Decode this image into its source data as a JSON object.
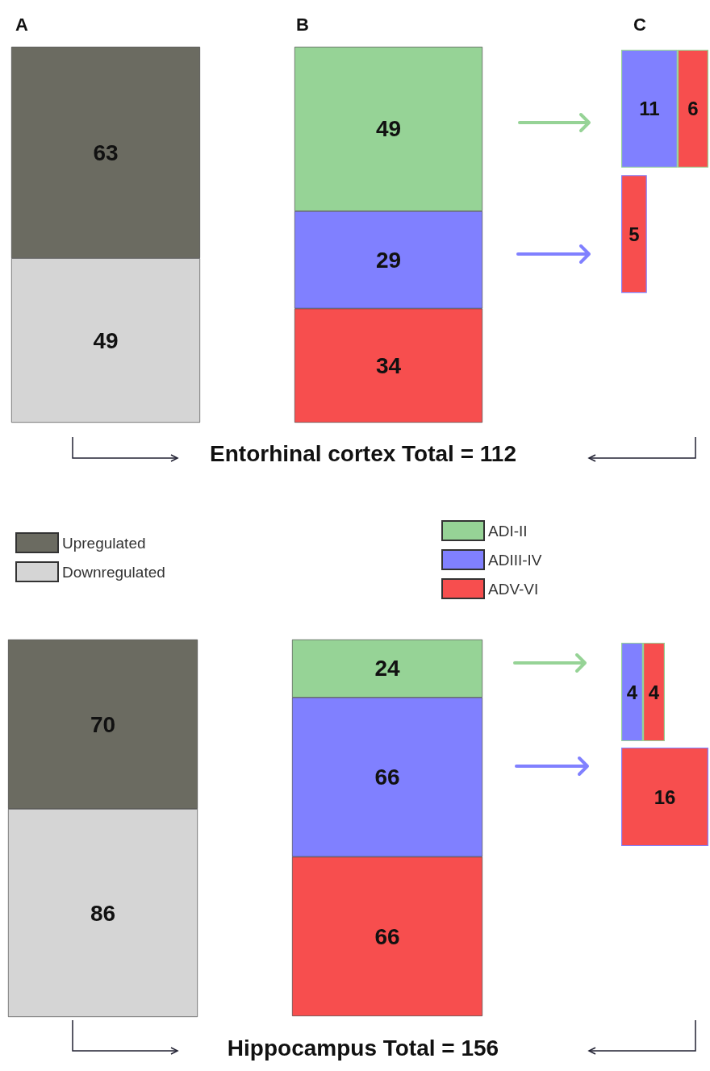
{
  "chart_data": [
    {
      "type": "bar",
      "title": "A",
      "stacked": true,
      "categories": [
        null
      ],
      "data_labels": true,
      "legend": "bottom",
      "series": [
        {
          "name": "Downregulated",
          "color": "#d5d5d5",
          "values": [
            49
          ]
        },
        {
          "name": "Upregulated",
          "color": "#6b6b61",
          "values": [
            63
          ]
        }
      ]
    },
    {
      "type": "bar",
      "title": "B",
      "stacked": true,
      "categories": [
        null
      ],
      "data_labels": true,
      "legend": "bottom",
      "annotations": [
        "Entorhinal cortex Total = 112"
      ],
      "series": [
        {
          "name": "ADV-VI",
          "color": "#f74e4e",
          "values": [
            34
          ]
        },
        {
          "name": "ADIII-IV",
          "color": "#8080ff",
          "values": [
            29
          ]
        },
        {
          "name": "ADI-II",
          "color": "#96d396",
          "values": [
            49
          ]
        }
      ]
    },
    {
      "type": "bar",
      "title": "C",
      "stacked": true,
      "orientation": "horizontal",
      "categories": [
        null,
        null
      ],
      "data_labels": true,
      "series": [
        {
          "color": "#8080ff",
          "values": [
            11,
            null
          ]
        },
        {
          "color": "#f74e4e",
          "values": [
            6,
            5
          ]
        }
      ]
    },
    {
      "type": "bar",
      "stacked": true,
      "categories": [
        null
      ],
      "data_labels": true,
      "series": [
        {
          "color": "#d5d5d5",
          "values": [
            86
          ]
        },
        {
          "color": "#6b6b61",
          "values": [
            70
          ]
        }
      ]
    },
    {
      "type": "bar",
      "stacked": true,
      "categories": [
        null
      ],
      "data_labels": true,
      "annotations": [
        "Hippocampus Total = 156"
      ],
      "series": [
        {
          "color": "#f74e4e",
          "values": [
            66
          ]
        },
        {
          "color": "#8080ff",
          "values": [
            66
          ]
        },
        {
          "color": "#96d396",
          "values": [
            24
          ]
        }
      ]
    },
    {
      "type": "bar",
      "stacked": true,
      "orientation": "horizontal",
      "categories": [
        null,
        null
      ],
      "data_labels": true,
      "series": [
        {
          "color": "#8080ff",
          "values": [
            4,
            null
          ]
        },
        {
          "color": "#f74e4e",
          "values": [
            4,
            16
          ]
        }
      ]
    }
  ]
}
